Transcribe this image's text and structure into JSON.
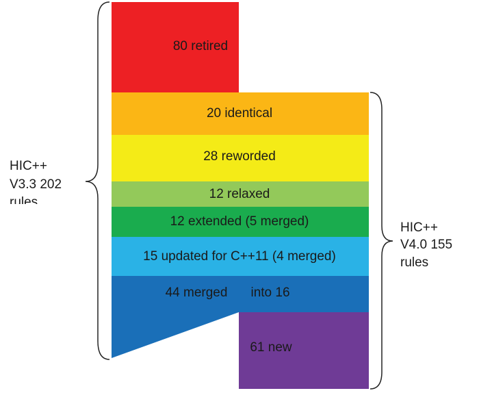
{
  "segments": [
    {
      "label": "80 retired"
    },
    {
      "label": "20 identical"
    },
    {
      "label": "28 reworded"
    },
    {
      "label": "12 relaxed"
    },
    {
      "label": "12 extended (5 merged)"
    },
    {
      "label": "15 updated for C++11 (4 merged)"
    },
    {
      "label": "44 merged",
      "label_right": "into 16"
    },
    {
      "label": "61 new"
    }
  ],
  "left_brace": {
    "lines": [
      "HIC++",
      "V3.3 202",
      "rules"
    ]
  },
  "right_brace": {
    "lines": [
      "HIC++",
      "V4.0 155",
      "rules"
    ]
  }
}
